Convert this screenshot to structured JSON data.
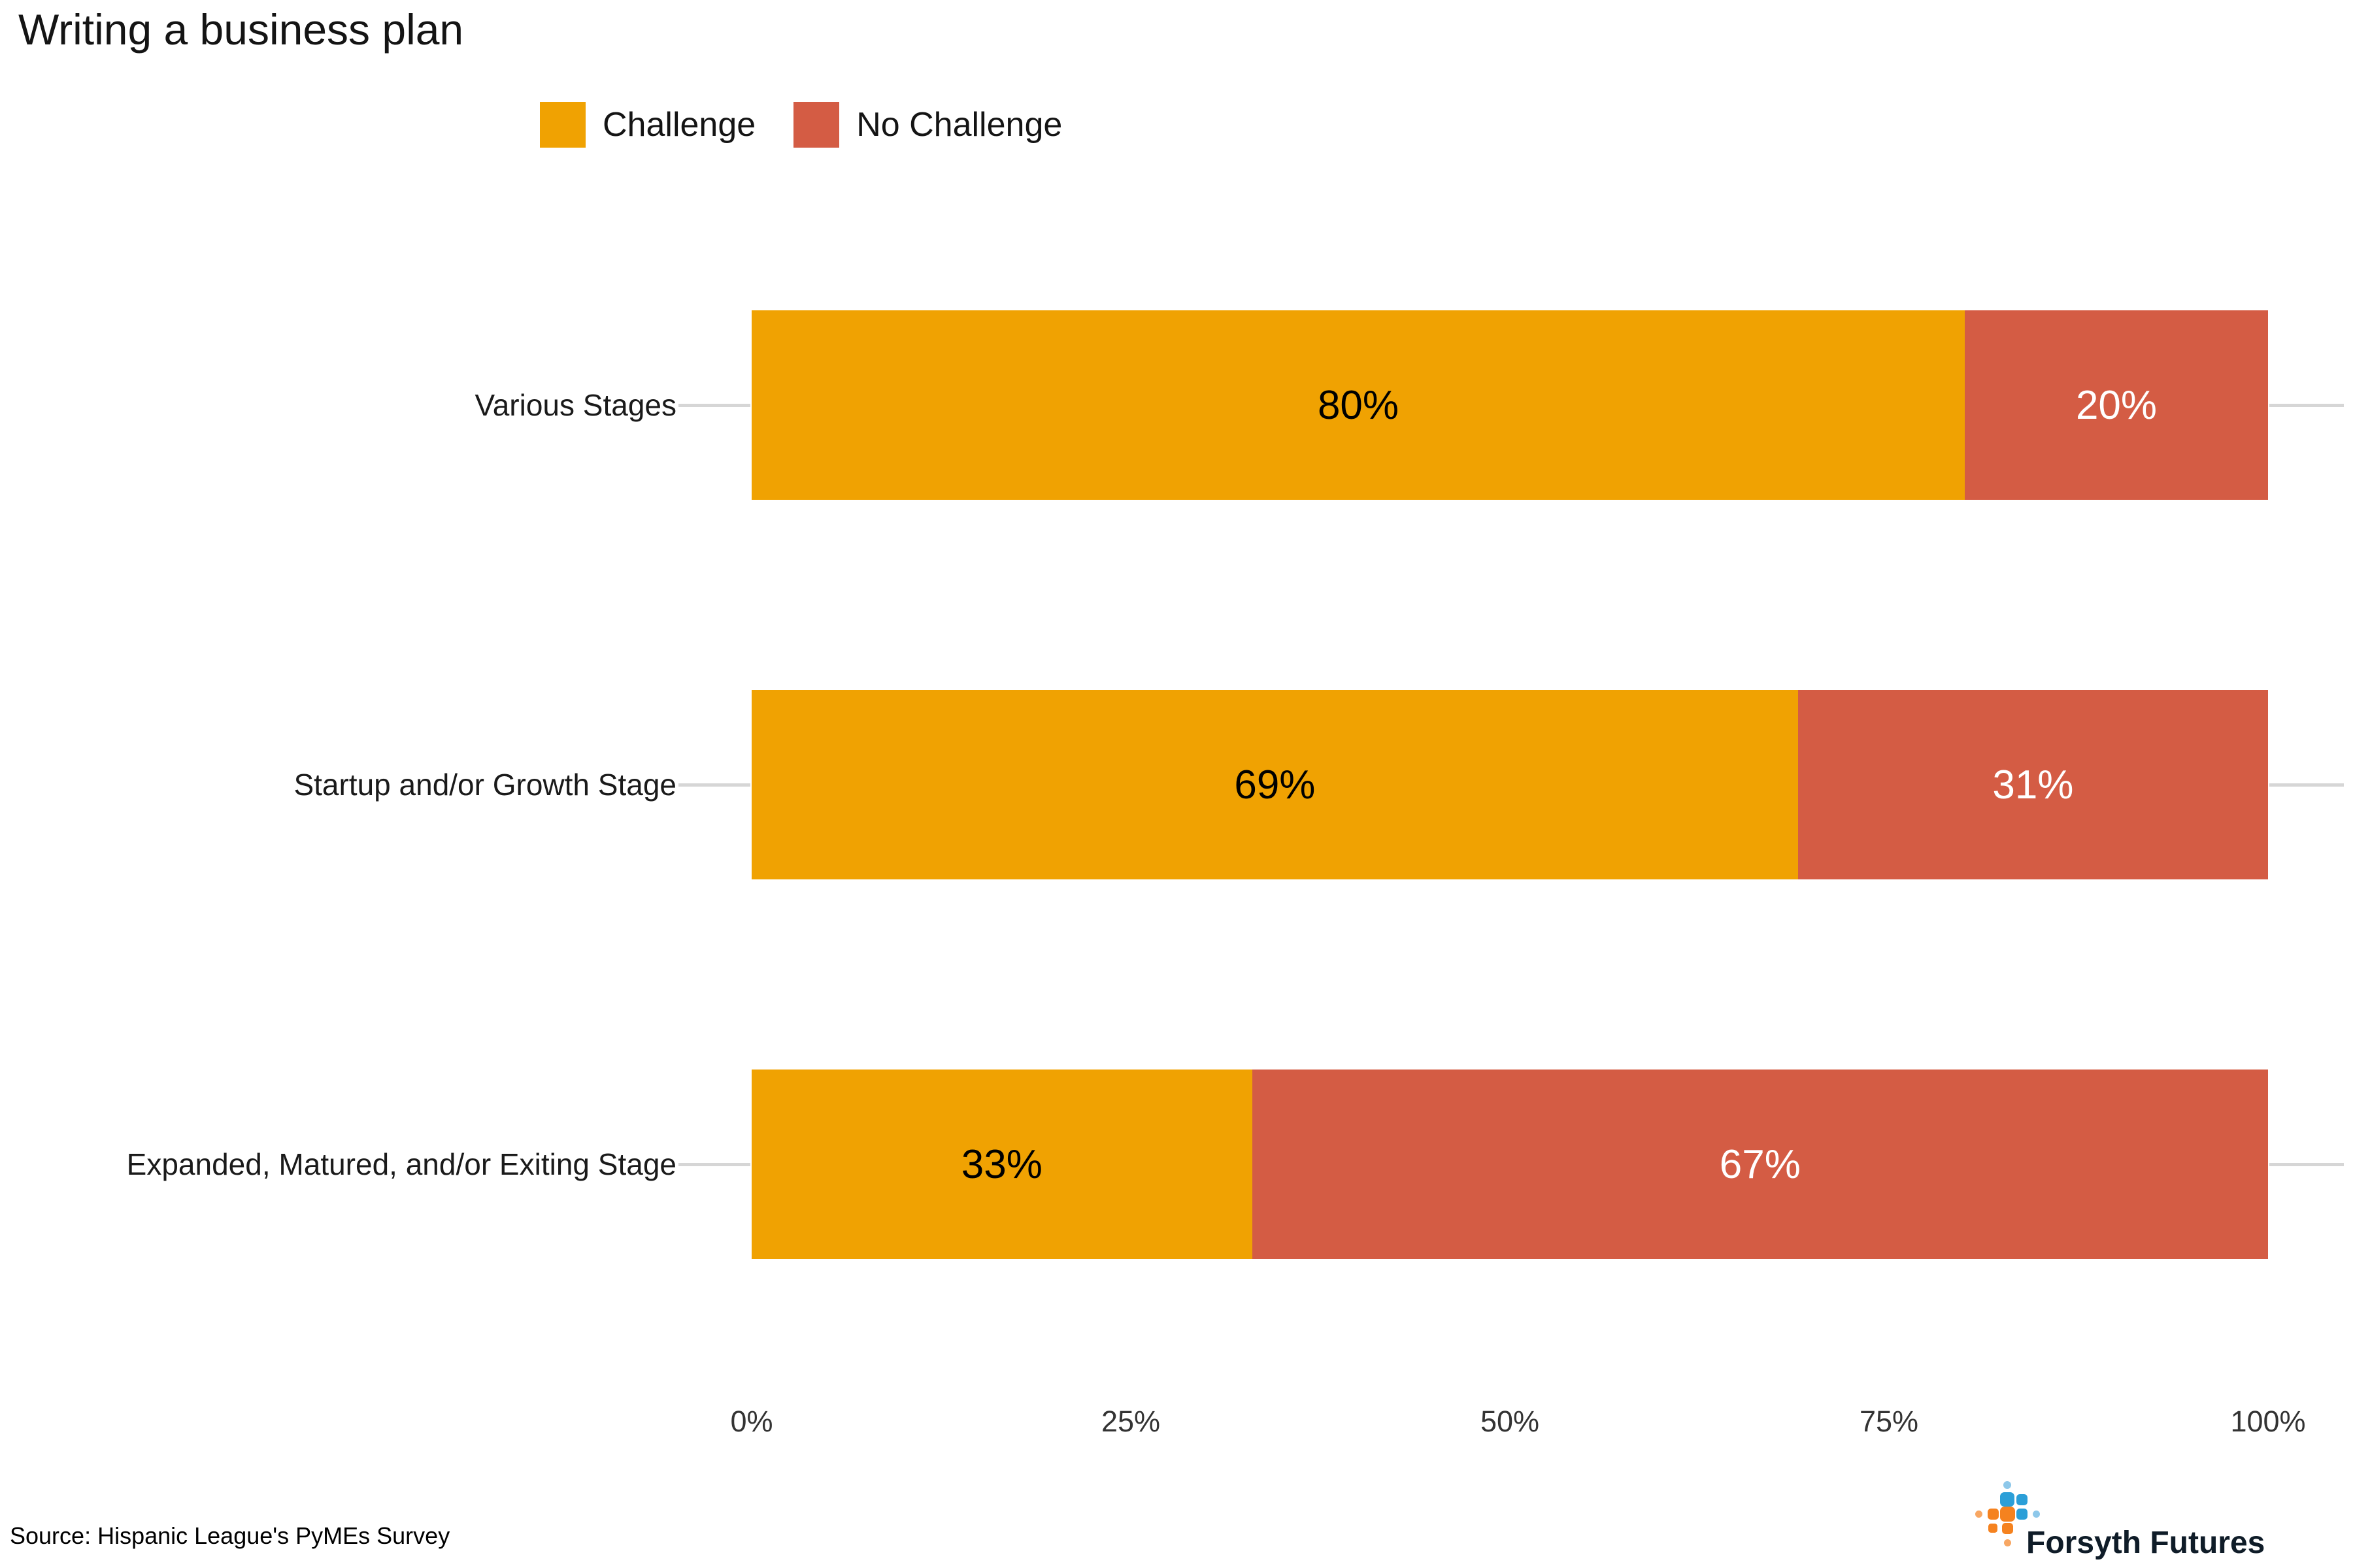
{
  "title": "Writing a business plan",
  "legend": {
    "items": [
      {
        "label": "Challenge",
        "color": "#F0A202"
      },
      {
        "label": "No Challenge",
        "color": "#D45C44"
      }
    ]
  },
  "chart_data": {
    "type": "bar",
    "orientation": "horizontal",
    "stacked": true,
    "title": "Writing a business plan",
    "categories": [
      "Various Stages",
      "Startup and/or Growth Stage",
      "Expanded, Matured, and/or Exiting Stage"
    ],
    "series": [
      {
        "name": "Challenge",
        "color": "#F0A202",
        "label_color": "#000000",
        "values": [
          80,
          69,
          33
        ],
        "labels": [
          "80%",
          "69%",
          "33%"
        ]
      },
      {
        "name": "No Challenge",
        "color": "#D45C44",
        "label_color": "#FFFFFF",
        "values": [
          20,
          31,
          67
        ],
        "labels": [
          "20%",
          "31%",
          "67%"
        ]
      }
    ],
    "x_axis": {
      "tick_values": [
        0,
        25,
        50,
        75,
        100
      ],
      "tick_labels": [
        "0%",
        "25%",
        "50%",
        "75%",
        "100%"
      ]
    },
    "xlim": [
      0,
      100
    ],
    "grid": "off",
    "legend_position": "top",
    "tick_color": "#D6D6D6"
  },
  "source": "Source: Hispanic League's PyMEs Survey",
  "logo": {
    "text": "Forsyth Futures",
    "icon_colors": {
      "blue": "#2B9FD8",
      "light_blue": "#8EC8EA",
      "orange": "#F5821F",
      "light_orange": "#F8A763"
    },
    "icon_dots": [
      {
        "c": 2,
        "r": 0,
        "s": 12,
        "color": "light_blue"
      },
      {
        "c": 2,
        "r": 1,
        "s": 22,
        "color": "blue"
      },
      {
        "c": 3,
        "r": 1,
        "s": 17,
        "color": "blue"
      },
      {
        "c": 0,
        "r": 2,
        "s": 11,
        "color": "light_orange"
      },
      {
        "c": 1,
        "r": 2,
        "s": 17,
        "color": "orange"
      },
      {
        "c": 2,
        "r": 2,
        "s": 23,
        "color": "orange"
      },
      {
        "c": 3,
        "r": 2,
        "s": 17,
        "color": "blue"
      },
      {
        "c": 4,
        "r": 2,
        "s": 11,
        "color": "light_blue"
      },
      {
        "c": 1,
        "r": 3,
        "s": 14,
        "color": "orange"
      },
      {
        "c": 2,
        "r": 3,
        "s": 17,
        "color": "orange"
      },
      {
        "c": 2,
        "r": 4,
        "s": 11,
        "color": "light_orange"
      }
    ]
  }
}
